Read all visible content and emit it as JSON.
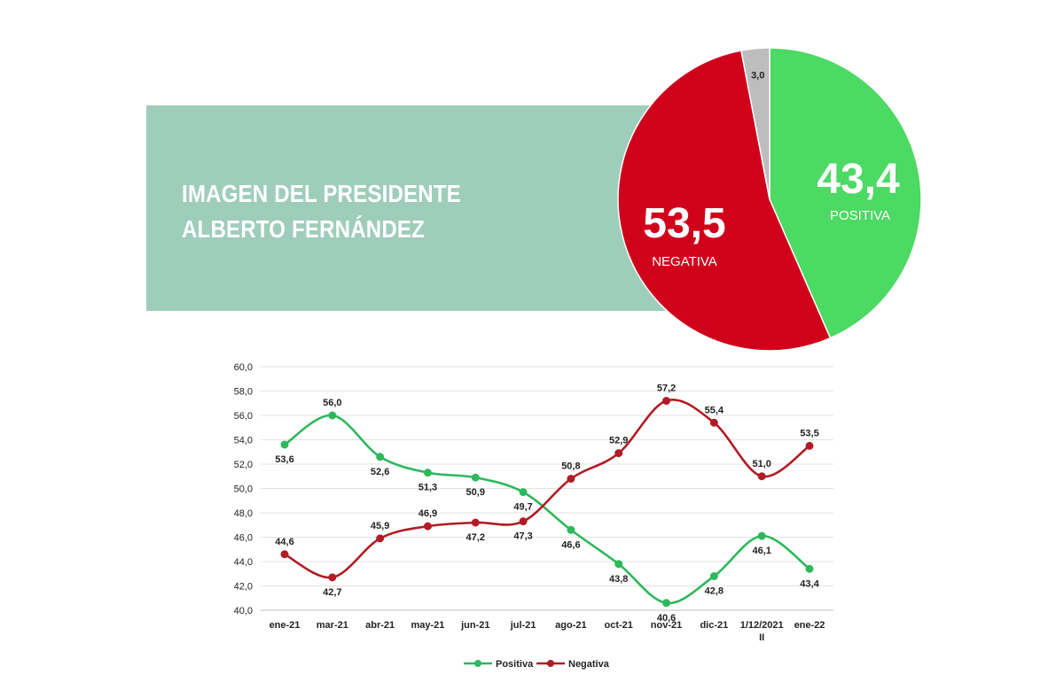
{
  "header": {
    "title_line1": "IMAGEN DEL PRESIDENTE",
    "title_line2": "ALBERTO FERNÁNDEZ"
  },
  "colors": {
    "positive": "#4cd964",
    "negative": "#d0021b",
    "ns": "#bdbdbd",
    "title_bg": "#9fcdbb",
    "line_positive": "#2eb85c",
    "line_negative": "#b01c25"
  },
  "chart_data": [
    {
      "type": "pie",
      "slices": [
        {
          "label": "POSITIVA",
          "value": 43.4,
          "value_text": "43,4",
          "color": "#4cd964"
        },
        {
          "label": "NEGATIVA",
          "value": 53.5,
          "value_text": "53,5",
          "color": "#d0021b"
        },
        {
          "label": "",
          "value": 3.0,
          "value_text": "3,0",
          "color": "#bdbdbd"
        }
      ]
    },
    {
      "type": "line",
      "categories": [
        "ene-21",
        "mar-21",
        "abr-21",
        "may-21",
        "jun-21",
        "jul-21",
        "ago-21",
        "oct-21",
        "nov-21",
        "dic-21",
        "1/12/2021",
        "ene-22"
      ],
      "categories_sub": [
        "",
        "",
        "",
        "",
        "",
        "",
        "",
        "",
        "",
        "",
        "II",
        ""
      ],
      "ylim": [
        40,
        60
      ],
      "yticks": [
        "40,0",
        "42,0",
        "44,0",
        "46,0",
        "48,0",
        "50,0",
        "52,0",
        "54,0",
        "56,0",
        "58,0",
        "60,0"
      ],
      "grid": true,
      "legend_position": "bottom",
      "series": [
        {
          "name": "Positiva",
          "color": "#2eb85c",
          "values": [
            53.6,
            56.0,
            52.6,
            51.3,
            50.9,
            49.7,
            46.6,
            43.8,
            40.6,
            42.8,
            46.1,
            43.4
          ],
          "labels": [
            "53,6",
            "56,0",
            "52,6",
            "51,3",
            "50,9",
            "49,7",
            "46,6",
            "43,8",
            "40,6",
            "42,8",
            "46,1",
            "43,4"
          ]
        },
        {
          "name": "Negativa",
          "color": "#b01c25",
          "values": [
            44.6,
            42.7,
            45.9,
            46.9,
            47.2,
            47.3,
            50.8,
            52.9,
            57.2,
            55.4,
            51.0,
            53.5
          ],
          "labels": [
            "44,6",
            "42,7",
            "45,9",
            "46,9",
            "47,2",
            "47,3",
            "50,8",
            "52,9",
            "57,2",
            "55,4",
            "51,0",
            "53,5"
          ]
        }
      ]
    }
  ]
}
